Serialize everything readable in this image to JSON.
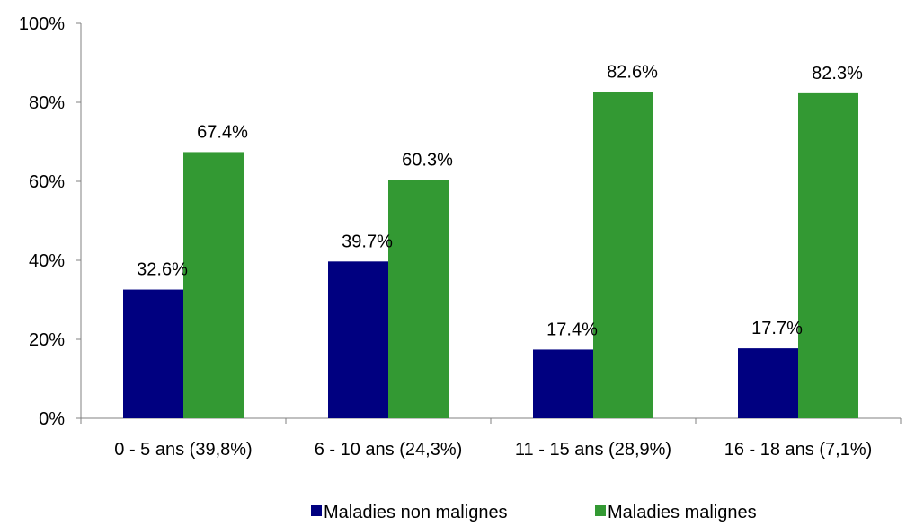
{
  "chart_data": {
    "type": "bar",
    "title": "",
    "xlabel": "",
    "ylabel": "",
    "categories": [
      "0 - 5 ans (39,8%)",
      "6 - 10 ans (24,3%)",
      "11 - 15 ans (28,9%)",
      "16 - 18 ans (7,1%)"
    ],
    "series": [
      {
        "name": "Maladies non malignes",
        "color": "#000080",
        "values": [
          32.6,
          39.7,
          17.4,
          17.7
        ],
        "labels": [
          "32.6%",
          "39.7%",
          "17.4%",
          "17.7%"
        ]
      },
      {
        "name": "Maladies malignes",
        "color": "#339933",
        "values": [
          67.4,
          60.3,
          82.6,
          82.3
        ],
        "labels": [
          "67.4%",
          "60.3%",
          "82.6%",
          "82.3%"
        ]
      }
    ],
    "ylim": [
      0,
      100
    ],
    "yticks": [
      "0%",
      "20%",
      "40%",
      "60%",
      "80%",
      "100%"
    ],
    "grid": false,
    "legend_position": "bottom"
  }
}
